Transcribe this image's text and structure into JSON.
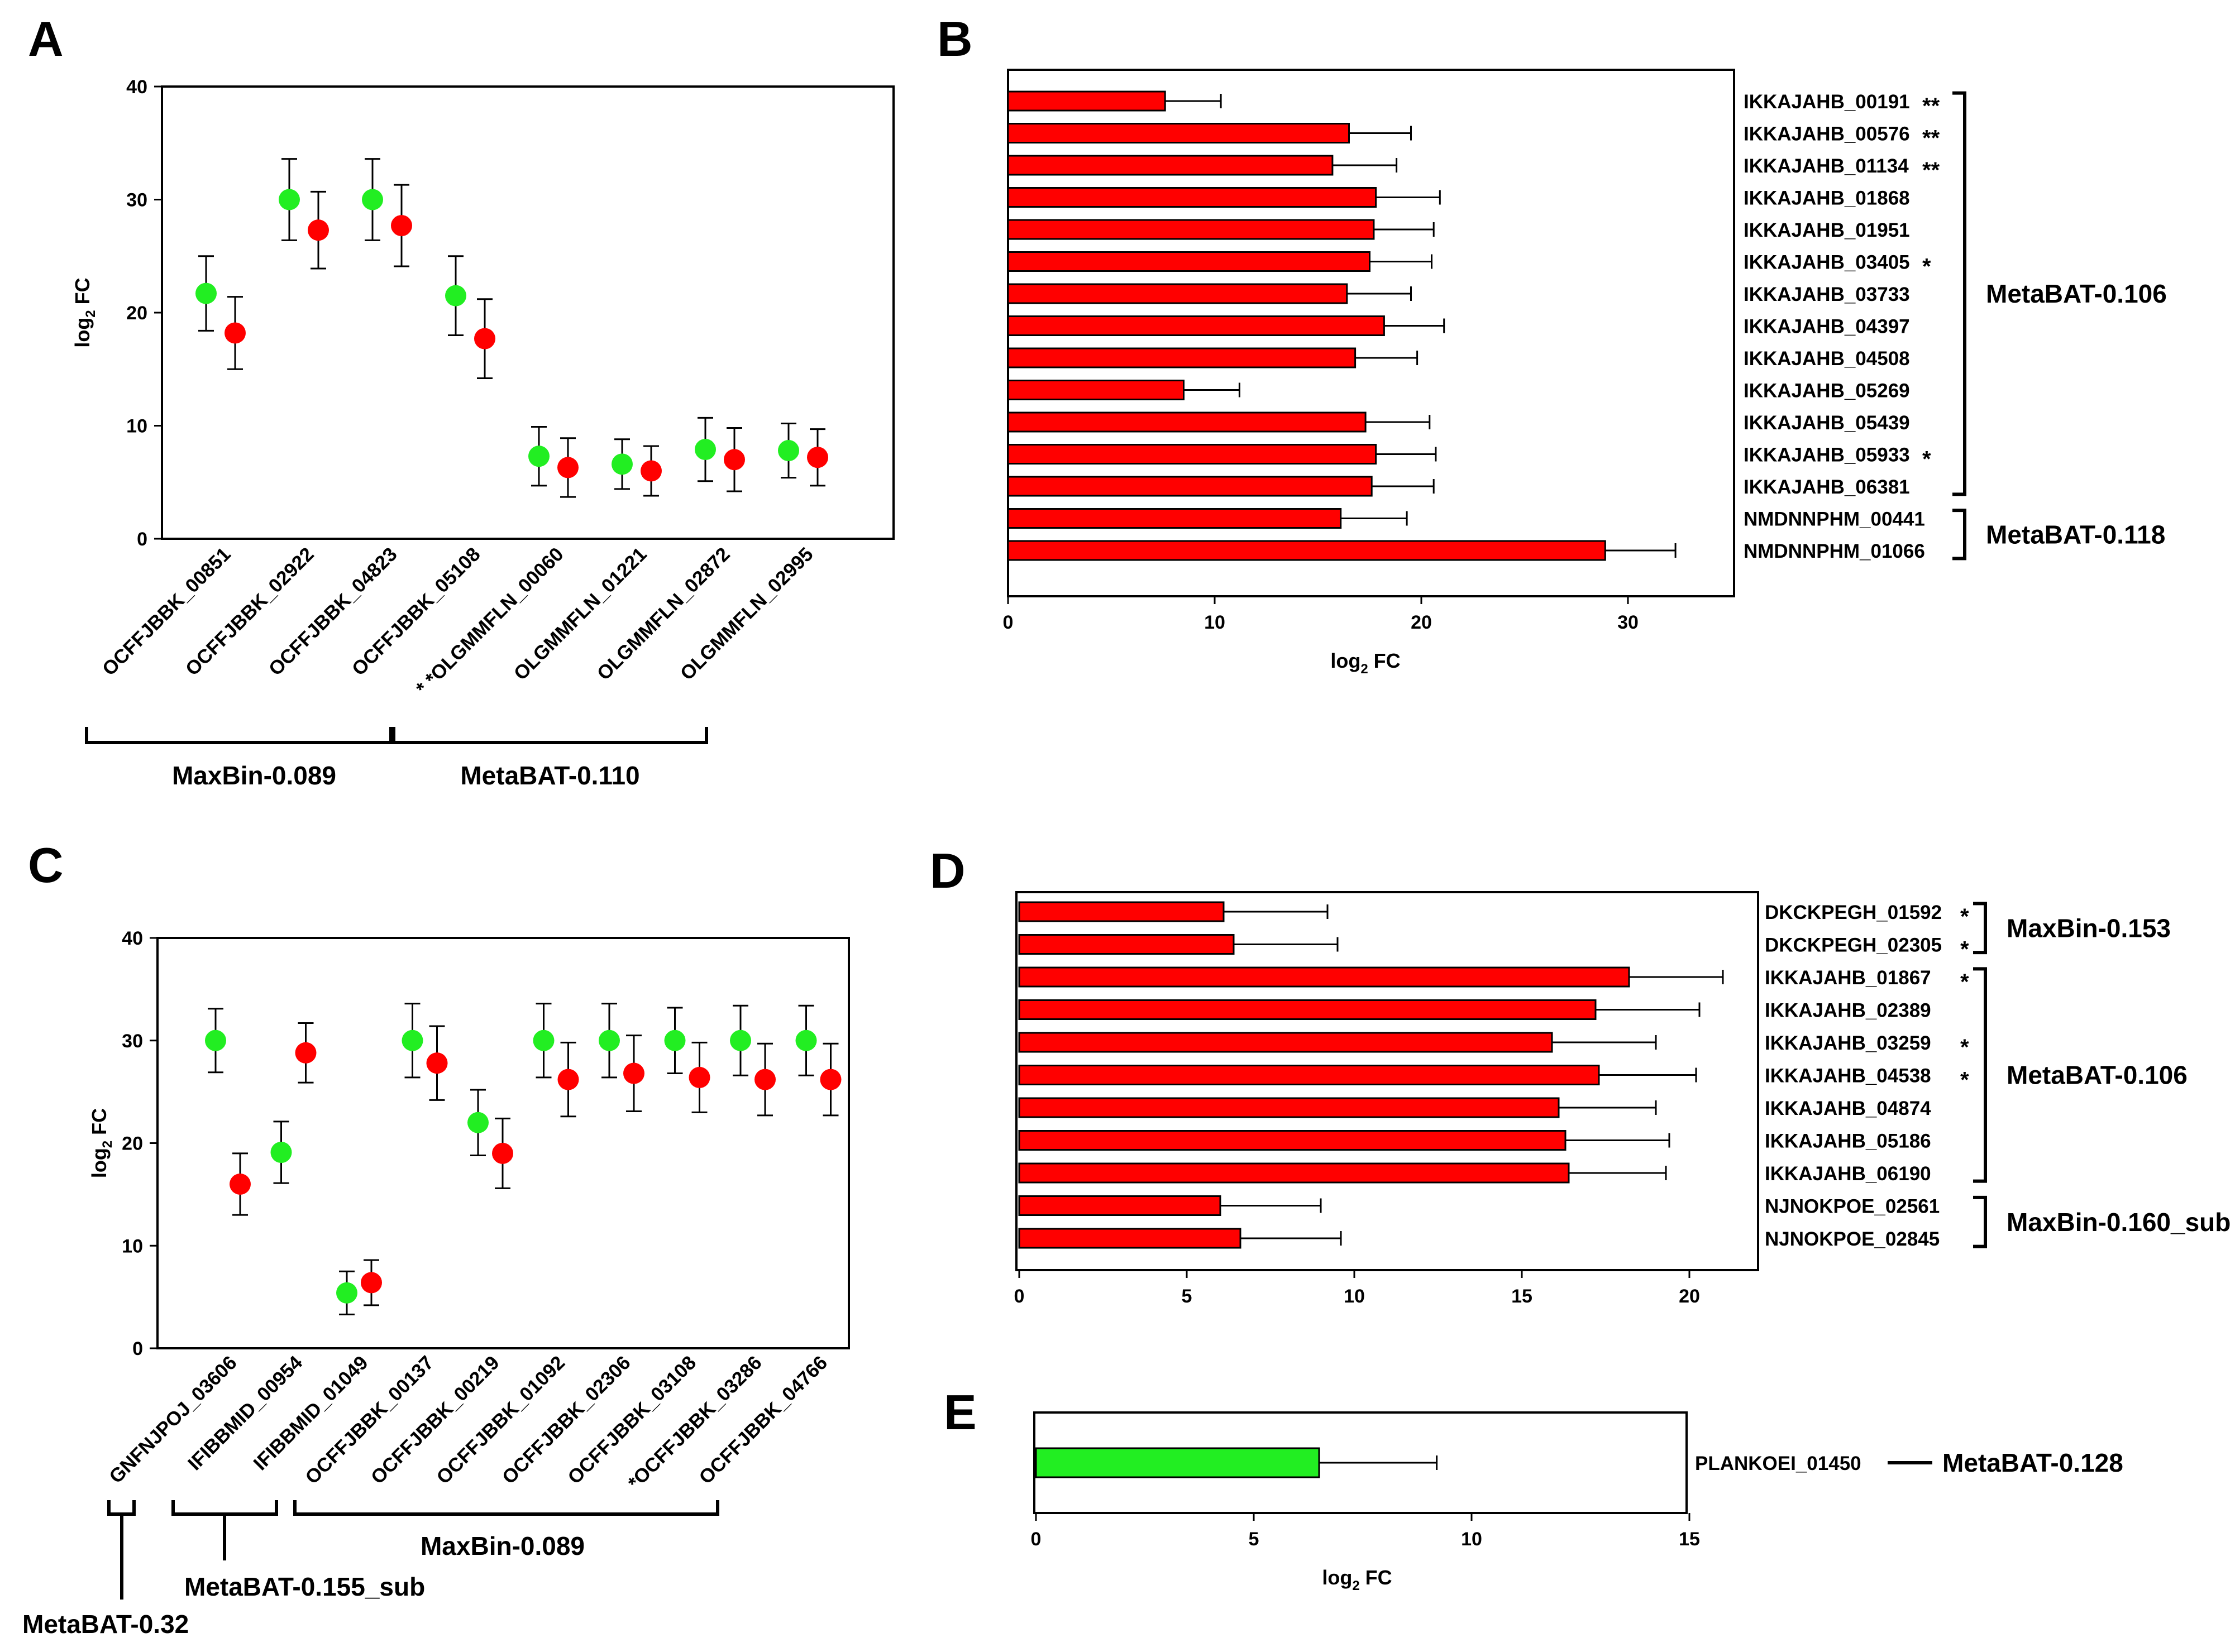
{
  "colors": {
    "red": "#ff0000",
    "green": "#22ee22",
    "black": "#000000"
  },
  "chart_data": [
    {
      "panel": "A",
      "type": "scatter",
      "ylabel": "log2 FC",
      "ylim": [
        0,
        40
      ],
      "yticks": [
        0,
        10,
        20,
        30,
        40
      ],
      "categories": [
        "OCFFJBBK_00851",
        "OCFFJBBK_02922",
        "OCFFJBBK_04823",
        "OCFFJBBK_05108",
        "* *OLGMMFLN_00060",
        "OLGMMFLN_01221",
        "OLGMMFLN_02872",
        "OLGMMFLN_02995"
      ],
      "series": [
        {
          "name": "green",
          "values": [
            21.7,
            30.0,
            30.0,
            21.5,
            7.3,
            6.6,
            7.9,
            7.8
          ],
          "errors": [
            3.3,
            3.6,
            3.6,
            3.5,
            2.6,
            2.2,
            2.8,
            2.4
          ]
        },
        {
          "name": "red",
          "values": [
            18.2,
            27.3,
            27.7,
            17.7,
            6.3,
            6.0,
            7.0,
            7.2
          ],
          "errors": [
            3.2,
            3.4,
            3.6,
            3.5,
            2.6,
            2.2,
            2.8,
            2.5
          ]
        }
      ],
      "groups": [
        {
          "label": "MaxBin-0.089",
          "from": 0,
          "to": 3
        },
        {
          "label": "MetaBAT-0.110",
          "from": 4,
          "to": 7
        }
      ]
    },
    {
      "panel": "B",
      "type": "bar",
      "orientation": "horizontal",
      "xlabel": "log2 FC",
      "xlim": [
        0,
        35
      ],
      "xticks": [
        0,
        10,
        20,
        30
      ],
      "categories": [
        "IKKAJAHB_00191",
        "IKKAJAHB_00576",
        "IKKAJAHB_01134",
        "IKKAJAHB_01868",
        "IKKAJAHB_01951",
        "IKKAJAHB_03405",
        "IKKAJAHB_03733",
        "IKKAJAHB_04397",
        "IKKAJAHB_04508",
        "IKKAJAHB_05269",
        "IKKAJAHB_05439",
        "IKKAJAHB_05933",
        "IKKAJAHB_06381",
        "NMDNNPHM_00441",
        "NMDNNPHM_01066"
      ],
      "stars": [
        "**",
        "**",
        "**",
        "",
        "",
        "*",
        "",
        "",
        "",
        "",
        "",
        "*",
        "",
        "",
        ""
      ],
      "values": [
        7.6,
        16.5,
        15.7,
        17.8,
        17.7,
        17.5,
        16.4,
        18.2,
        16.8,
        8.5,
        17.3,
        17.8,
        17.6,
        16.1,
        28.9
      ],
      "errors": [
        2.7,
        3.0,
        3.1,
        3.1,
        2.9,
        3.0,
        3.1,
        2.9,
        3.0,
        2.7,
        3.1,
        2.9,
        3.0,
        3.2,
        3.4
      ],
      "bar_color": "#ff0000",
      "groups": [
        {
          "label": "MetaBAT-0.106",
          "from": 0,
          "to": 12
        },
        {
          "label": "MetaBAT-0.118",
          "from": 13,
          "to": 14
        }
      ]
    },
    {
      "panel": "C",
      "type": "scatter",
      "ylabel": "log2 FC",
      "ylim": [
        0,
        40
      ],
      "yticks": [
        0,
        10,
        20,
        30,
        40
      ],
      "categories": [
        "GNFNJPOJ_03606",
        "IFIBBMID_00954",
        "IFIBBMID_01049",
        "OCFFJBBK_00137",
        "OCFFJBBK_00219",
        "OCFFJBBK_01092",
        "OCFFJBBK_02306",
        "OCFFJBBK_03108",
        "*OCFFJBBK_03286",
        "OCFFJBBK_04766"
      ],
      "series": [
        {
          "name": "red",
          "values": [
            16.0,
            28.8,
            6.4,
            27.8,
            19.0,
            26.2,
            26.8,
            26.4,
            26.2,
            26.2
          ],
          "errors": [
            3.0,
            2.9,
            2.2,
            3.6,
            3.4,
            3.6,
            3.7,
            3.4,
            3.5,
            3.5
          ]
        },
        {
          "name": "green",
          "values": [
            30.0,
            19.1,
            5.4,
            30.0,
            22.0,
            30.0,
            30.0,
            30.0,
            30.0,
            30.0
          ],
          "errors": [
            3.1,
            3.0,
            2.1,
            3.6,
            3.2,
            3.6,
            3.6,
            3.2,
            3.4,
            3.4
          ]
        }
      ],
      "groups": [
        {
          "label": "MetaBAT-0.32",
          "from": 0,
          "to": 0
        },
        {
          "label": "MetaBAT-0.155_sub",
          "from": 1,
          "to": 2
        },
        {
          "label": "MaxBin-0.089",
          "from": 3,
          "to": 9
        }
      ]
    },
    {
      "panel": "D",
      "type": "bar",
      "orientation": "horizontal",
      "xlim": [
        0,
        22
      ],
      "xticks": [
        0,
        5,
        10,
        15,
        20
      ],
      "categories": [
        "DKCKPEGH_01592",
        "DKCKPEGH_02305",
        "IKKAJAHB_01867",
        "IKKAJAHB_02389",
        "IKKAJAHB_03259",
        "IKKAJAHB_04538",
        "IKKAJAHB_04874",
        "IKKAJAHB_05186",
        "IKKAJAHB_06190",
        "NJNOKPOE_02561",
        "NJNOKPOE_02845"
      ],
      "stars": [
        "*",
        "*",
        "*",
        "",
        "*",
        "*",
        "",
        "",
        "",
        "",
        ""
      ],
      "values": [
        6.1,
        6.4,
        18.2,
        17.2,
        15.9,
        17.3,
        16.1,
        16.3,
        16.4,
        6.0,
        6.6
      ],
      "errors": [
        3.1,
        3.1,
        2.8,
        3.1,
        3.1,
        2.9,
        2.9,
        3.1,
        2.9,
        3.0,
        3.0
      ],
      "bar_color": "#ff0000",
      "groups": [
        {
          "label": "MaxBin-0.153",
          "from": 0,
          "to": 1
        },
        {
          "label": "MetaBAT-0.106",
          "from": 2,
          "to": 8
        },
        {
          "label": "MaxBin-0.160_sub",
          "from": 9,
          "to": 10
        }
      ]
    },
    {
      "panel": "E",
      "type": "bar",
      "orientation": "horizontal",
      "xlabel": "log2 FC",
      "xlim": [
        0,
        15
      ],
      "xticks": [
        0,
        5,
        10,
        15
      ],
      "categories": [
        "PLANKOEI_01450"
      ],
      "stars": [
        ""
      ],
      "values": [
        6.5
      ],
      "errors": [
        2.7
      ],
      "bar_color": "#22ee22",
      "groups": [
        {
          "label": "MetaBAT-0.128",
          "from": 0,
          "to": 0
        }
      ]
    }
  ]
}
